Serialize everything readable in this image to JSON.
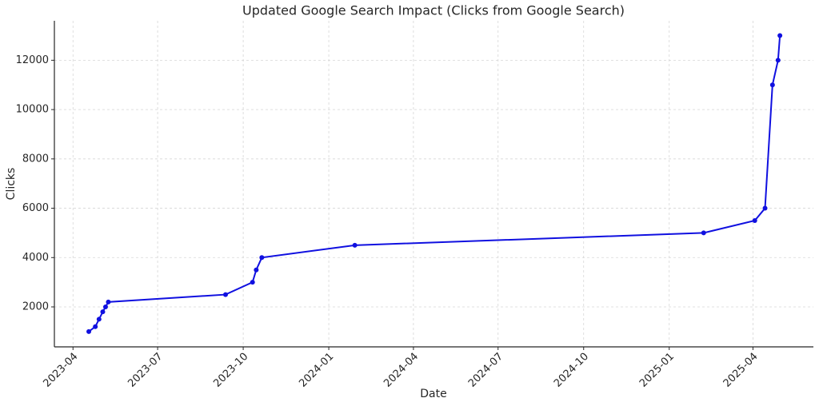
{
  "chart_data": {
    "type": "line",
    "title": "Updated Google Search Impact (Clicks from Google Search)",
    "x_label": "Date",
    "y_label": "Clicks",
    "x": [
      "2023-04-18",
      "2023-04-25",
      "2023-04-29",
      "2023-05-03",
      "2023-05-06",
      "2023-05-09",
      "2023-09-12",
      "2023-10-11",
      "2023-10-15",
      "2023-10-21",
      "2024-01-29",
      "2025-02-07",
      "2025-04-03",
      "2025-04-14",
      "2025-04-22",
      "2025-04-28",
      "2025-04-30"
    ],
    "series": [
      {
        "name": "Clicks",
        "color": "#1010e0",
        "values": [
          1000,
          1200,
          1500,
          1800,
          2000,
          2200,
          2500,
          3000,
          3500,
          4000,
          4500,
          5000,
          5500,
          6000,
          11000,
          12000,
          13000
        ]
      }
    ],
    "xlim": [
      "2023-03-12",
      "2025-06-05"
    ],
    "xticks": [
      {
        "value": "2023-04-01",
        "label": "2023-04"
      },
      {
        "value": "2023-07-01",
        "label": "2023-07"
      },
      {
        "value": "2023-10-01",
        "label": "2023-10"
      },
      {
        "value": "2024-01-01",
        "label": "2024-01"
      },
      {
        "value": "2024-04-01",
        "label": "2024-04"
      },
      {
        "value": "2024-07-01",
        "label": "2024-07"
      },
      {
        "value": "2024-10-01",
        "label": "2024-10"
      },
      {
        "value": "2025-01-01",
        "label": "2025-01"
      },
      {
        "value": "2025-04-01",
        "label": "2025-04"
      }
    ],
    "ylim": [
      380,
      13600
    ],
    "yticks": [
      2000,
      4000,
      6000,
      8000,
      10000,
      12000
    ],
    "grid": true
  }
}
